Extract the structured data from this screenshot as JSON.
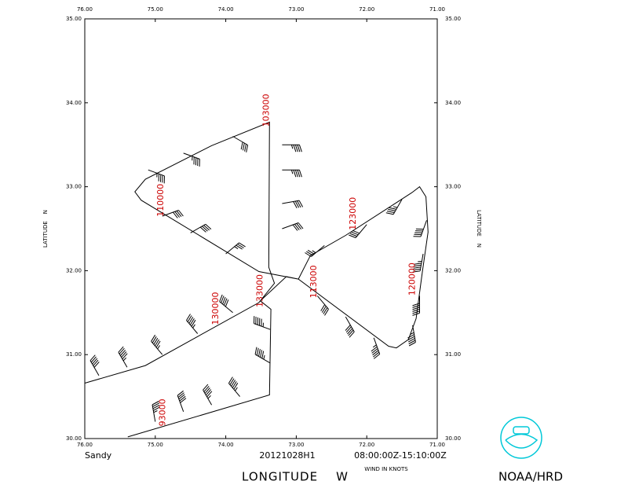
{
  "chart_data": {
    "type": "flight-track",
    "storm": "Sandy",
    "flight": "20121028H1",
    "time_range": "08:00:00Z-15:10:00Z",
    "wind_units": "WIND IN KNOTS",
    "x_label": "LONGITUDE    W",
    "y_label": "LATITUDE    N",
    "agency": "NOAA/HRD",
    "xlim": [
      76,
      71
    ],
    "ylim": [
      30,
      35
    ],
    "xticks": [
      {
        "value": 76,
        "label": "76.00"
      },
      {
        "value": 75,
        "label": "75.00"
      },
      {
        "value": 74,
        "label": "74.00"
      },
      {
        "value": 73,
        "label": "73.00"
      },
      {
        "value": 72,
        "label": "72.00"
      },
      {
        "value": 71,
        "label": "71.00"
      }
    ],
    "yticks": [
      {
        "value": 30,
        "label": "30.00"
      },
      {
        "value": 31,
        "label": "31.00"
      },
      {
        "value": 32,
        "label": "32.00"
      },
      {
        "value": 33,
        "label": "33.00"
      },
      {
        "value": 34,
        "label": "34.00"
      },
      {
        "value": 35,
        "label": "35.00"
      }
    ],
    "track": {
      "color": "#000000",
      "x": [
        75.39,
        73.38,
        73.36,
        73.51,
        73.14,
        72.97,
        72.8,
        72.3,
        71.36,
        71.25,
        71.16,
        71.13,
        71.21,
        71.3,
        71.41,
        71.58,
        71.69,
        72.97,
        73.53,
        75.2,
        75.29,
        75.14,
        74.2,
        73.38,
        73.39,
        73.31,
        73.53,
        75.14,
        76.0
      ],
      "y": [
        30.02,
        30.52,
        31.54,
        31.64,
        31.93,
        31.9,
        32.18,
        32.42,
        32.93,
        33.0,
        32.88,
        32.46,
        31.99,
        31.43,
        31.18,
        31.08,
        31.1,
        31.9,
        31.99,
        32.84,
        32.94,
        33.09,
        33.49,
        33.77,
        32.04,
        31.85,
        31.62,
        30.87,
        30.66
      ]
    },
    "barbs": {
      "lon": [
        75.0,
        74.6,
        74.2,
        73.8,
        73.37,
        73.37,
        75.8,
        75.4,
        74.9,
        74.4,
        73.9,
        72.6,
        72.0,
        71.5,
        71.15,
        71.2,
        71.25,
        71.35,
        71.9,
        72.3,
        72.7,
        74.9,
        74.5,
        74.0,
        75.1,
        74.6,
        73.9,
        73.2,
        73.2,
        73.2,
        73.2
      ],
      "lat": [
        30.2,
        30.32,
        30.4,
        30.5,
        30.9,
        31.3,
        30.75,
        30.85,
        31.0,
        31.25,
        31.5,
        32.3,
        32.55,
        32.85,
        32.6,
        32.2,
        31.7,
        31.35,
        31.2,
        31.45,
        31.7,
        32.65,
        32.45,
        32.2,
        33.2,
        33.4,
        33.6,
        33.5,
        33.2,
        32.8,
        32.5
      ],
      "speed": [
        45,
        50,
        55,
        55,
        55,
        55,
        50,
        55,
        55,
        55,
        50,
        35,
        40,
        45,
        50,
        55,
        60,
        55,
        55,
        50,
        40,
        40,
        40,
        35,
        45,
        45,
        40,
        45,
        45,
        40,
        40
      ],
      "direction": [
        350,
        340,
        330,
        320,
        300,
        290,
        330,
        330,
        320,
        320,
        310,
        230,
        220,
        210,
        200,
        190,
        180,
        170,
        160,
        150,
        140,
        70,
        60,
        50,
        110,
        110,
        120,
        90,
        90,
        80,
        70
      ]
    },
    "time_labels": {
      "color": "#cc0000",
      "text": [
        "93000",
        "103000",
        "110000",
        "113000",
        "120000",
        "123000",
        "130000",
        "133000"
      ],
      "lon": [
        74.89,
        73.42,
        74.92,
        72.75,
        71.35,
        72.19,
        74.14,
        73.51
      ],
      "lat": [
        30.31,
        33.91,
        32.84,
        31.87,
        31.9,
        32.68,
        31.55,
        31.76
      ]
    },
    "logo_color": "#00c8d8"
  }
}
